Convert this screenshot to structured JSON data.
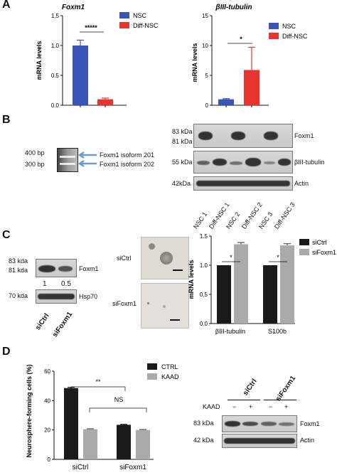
{
  "panels": {
    "a": "A",
    "b": "B",
    "c": "C",
    "d": "D"
  },
  "colors": {
    "nsc": "#3a55b8",
    "diff": "#e8332e",
    "dark": "#1a1a1a",
    "gray": "#aaaaaa",
    "arrow": "#6e9bd0"
  },
  "panelA": {
    "left": {
      "title": "Foxm1",
      "ylabel": "mRNA levels",
      "sig": "*****",
      "legend": [
        "NSC",
        "Diff-NSC"
      ]
    },
    "right": {
      "title": "βIII-tubulin",
      "ylabel": "mRNA levels",
      "sig": "*",
      "legend": [
        "NSC",
        "Diff-NSC"
      ]
    }
  },
  "panelB": {
    "ladder": [
      "400 bp",
      "300 bp"
    ],
    "isoforms": [
      "Foxm1 isoform 201",
      "Foxm1 isoform 202"
    ],
    "mw": [
      "83 kDa",
      "81 kDa",
      "55 kDa",
      "42kDa"
    ],
    "proteins": [
      "Foxm1",
      "βIII-tubulin",
      "Actin"
    ],
    "lanes": [
      "NSC 1",
      "Diff-NSC 1",
      "NSC 2",
      "Diff-NSC 2",
      "NSC 3",
      "Diff-NSC 3"
    ]
  },
  "panelC": {
    "mw": [
      "83 kda",
      "81 kda",
      "70 kda"
    ],
    "proteins": [
      "Foxm1",
      "Hsp70"
    ],
    "quant": [
      "1",
      "0.5"
    ],
    "lanes": [
      "siCtrl",
      "siFoxm1"
    ],
    "images": [
      "siCtrl",
      "siFoxm1"
    ],
    "chart": {
      "ylabel": "mRNA levels",
      "categories": [
        "βIII-tubulin",
        "S100b"
      ],
      "legend": [
        "siCtrl",
        "siFoxm1"
      ],
      "sig": [
        "*",
        "*"
      ]
    }
  },
  "panelD": {
    "chart": {
      "ylabel": "Neurosphere-forming cells (%)",
      "categories": [
        "siCtrl",
        "siFoxm1"
      ],
      "legend": [
        "CTRL",
        "KAAD"
      ],
      "sig": [
        "**",
        "NS"
      ]
    },
    "blot": {
      "groups": [
        "siCtrl",
        "siFoxm1"
      ],
      "kaad": "KAAD",
      "signs": [
        "−",
        "+",
        "−",
        "+"
      ],
      "mw": [
        "83 kDa",
        "42 kDa"
      ],
      "proteins": [
        "Foxm1",
        "Actin"
      ]
    }
  },
  "chart_data": [
    {
      "type": "bar",
      "title": "Foxm1",
      "ylabel": "mRNA levels",
      "ylim": [
        0,
        1.5
      ],
      "yticks": [
        "0.0",
        "0.5",
        "1.0",
        "1.5"
      ],
      "categories": [
        "NSC",
        "Diff-NSC"
      ],
      "series": [
        {
          "name": "NSC",
          "values": [
            1.0,
            null
          ]
        },
        {
          "name": "Diff-NSC",
          "values": [
            null,
            0.1
          ]
        }
      ],
      "errors": [
        0.09,
        0.02
      ]
    },
    {
      "type": "bar",
      "title": "βIII-tubulin",
      "ylabel": "mRNA levels",
      "ylim": [
        0,
        15
      ],
      "yticks": [
        "0",
        "5",
        "10",
        "15"
      ],
      "categories": [
        "NSC",
        "Diff-NSC"
      ],
      "series": [
        {
          "name": "NSC",
          "values": [
            1.0,
            null
          ]
        },
        {
          "name": "Diff-NSC",
          "values": [
            null,
            5.9
          ]
        }
      ],
      "errors": [
        0.1,
        3.8
      ]
    },
    {
      "type": "bar",
      "ylabel": "mRNA levels",
      "ylim": [
        0,
        1.5
      ],
      "yticks": [
        "0.0",
        "0.5",
        "1.0",
        "1.5"
      ],
      "categories": [
        "βIII-tubulin",
        "S100b"
      ],
      "series": [
        {
          "name": "siCtrl",
          "values": [
            1.0,
            1.0
          ]
        },
        {
          "name": "siFoxm1",
          "values": [
            1.36,
            1.34
          ]
        }
      ],
      "errors": [
        [
          0,
          0
        ],
        [
          0.03,
          0.03
        ]
      ]
    },
    {
      "type": "bar",
      "ylabel": "Neurosphere-forming cells (%)",
      "ylim": [
        0,
        60
      ],
      "yticks": [
        "0",
        "20",
        "40",
        "60"
      ],
      "categories": [
        "siCtrl",
        "siFoxm1"
      ],
      "series": [
        {
          "name": "CTRL",
          "values": [
            48.5,
            23.5
          ]
        },
        {
          "name": "KAAD",
          "values": [
            20.5,
            20.0
          ]
        }
      ],
      "errors": [
        [
          0.5,
          0.3
        ],
        [
          0.3,
          0.3
        ]
      ]
    }
  ]
}
